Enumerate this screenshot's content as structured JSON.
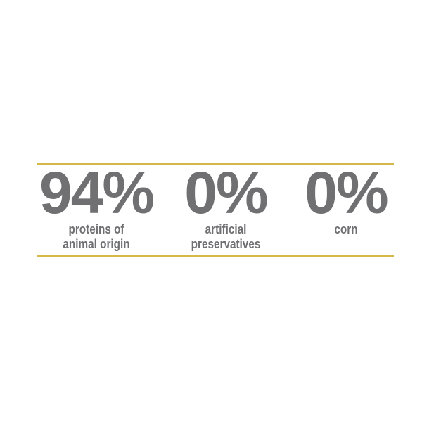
{
  "colors": {
    "rule": "#d4b84a",
    "text": "#707073"
  },
  "stats": [
    {
      "value": "94%",
      "label_lines": [
        "proteins of",
        "animal origin"
      ]
    },
    {
      "value": "0%",
      "label_lines": [
        "artificial",
        "preservatives"
      ]
    },
    {
      "value": "0%",
      "label_lines": [
        "corn"
      ]
    }
  ]
}
